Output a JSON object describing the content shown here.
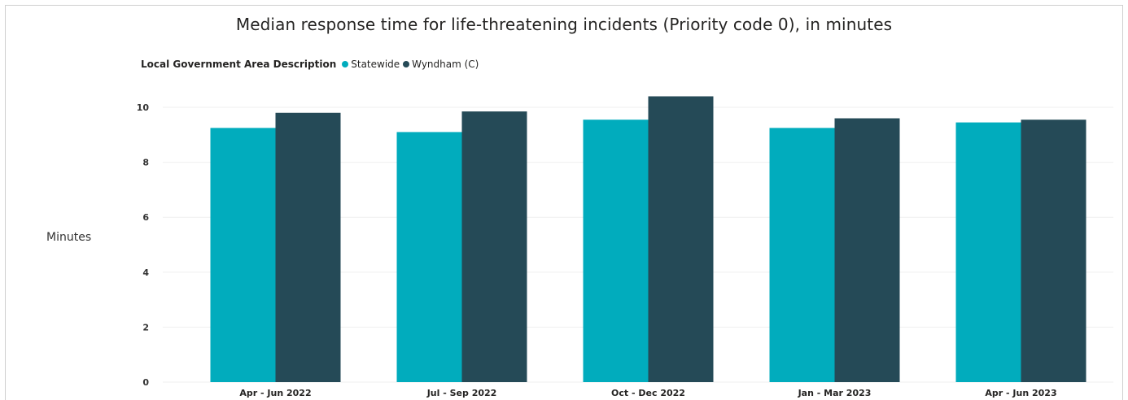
{
  "chart_data": {
    "type": "bar",
    "title": "Median response time for life-threatening incidents (Priority code 0), in minutes",
    "ylabel": "Minutes",
    "xlabel": "",
    "legend_title": "Local Government Area Description",
    "legend_position": "top-left",
    "categories": [
      "Apr - Jun 2022",
      "Jul - Sep 2022",
      "Oct - Dec 2022",
      "Jan - Mar 2023",
      "Apr - Jun 2023"
    ],
    "series": [
      {
        "name": "Statewide",
        "color": "#01ACBD",
        "values": [
          9.25,
          9.1,
          9.55,
          9.25,
          9.45
        ]
      },
      {
        "name": "Wyndham (C)",
        "color": "#254A57",
        "values": [
          9.8,
          9.85,
          10.4,
          9.6,
          9.55
        ]
      }
    ],
    "yticks": [
      "0",
      "2",
      "4",
      "6",
      "8",
      "10"
    ],
    "ylim": [
      0,
      11
    ],
    "grid": true
  }
}
